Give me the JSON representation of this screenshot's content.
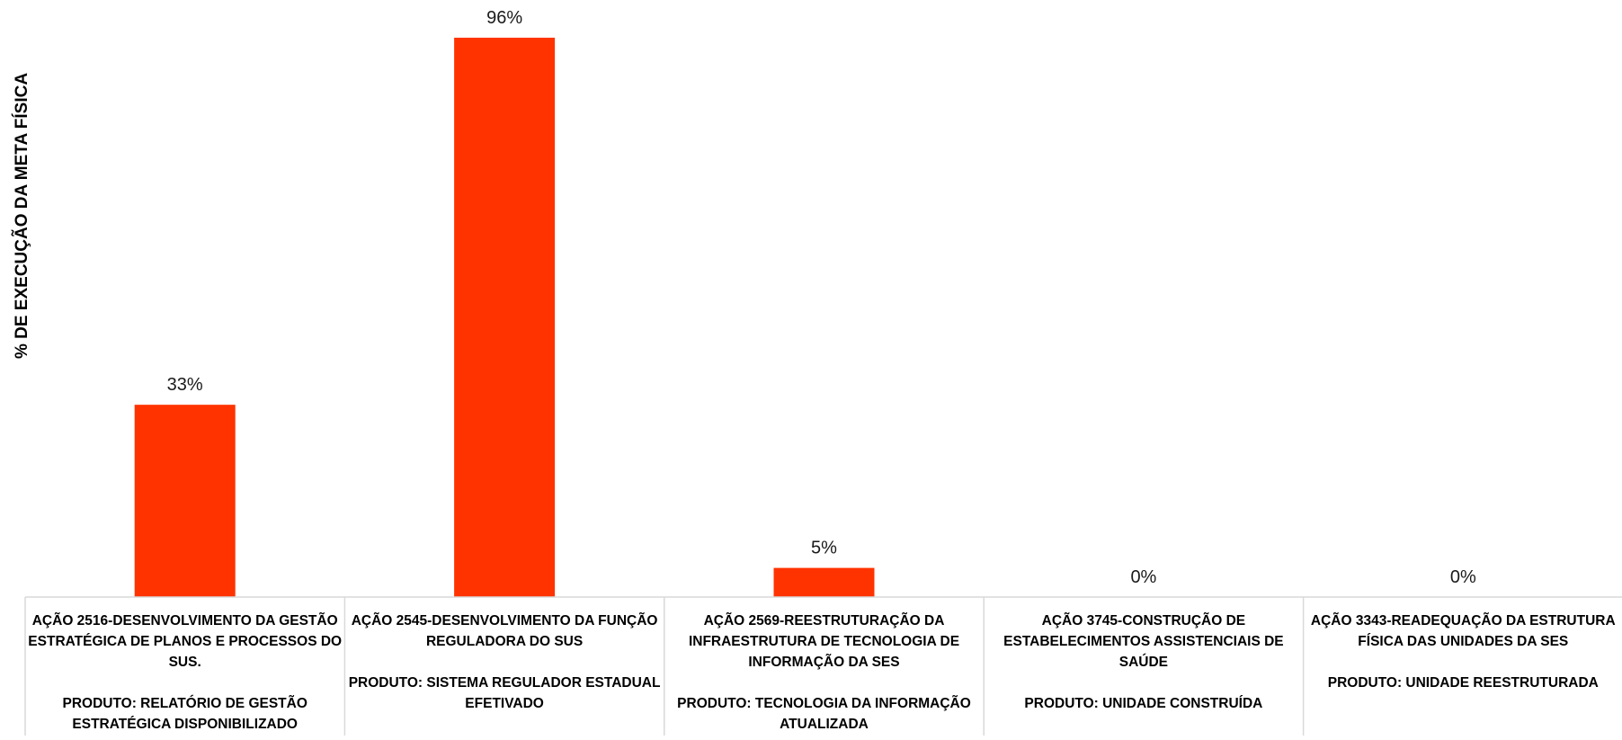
{
  "chart_data": {
    "type": "bar",
    "title": "",
    "xlabel": "",
    "ylabel": "% DE EXECUÇÃO DA META FÍSICA",
    "ylim": [
      0,
      100
    ],
    "grid": false,
    "legend": "none",
    "bar_color": "#FF3300",
    "categories": [
      "AÇÃO 2516-DESENVOLVIMENTO DA GESTÃO ESTRATÉGICA DE PLANOS E PROCESSOS DO SUS.\n\nPRODUTO: RELATÓRIO DE GESTÃO ESTRATÉGICA DISPONIBILIZADO",
      "AÇÃO 2545-DESENVOLVIMENTO DA FUNÇÃO REGULADORA DO SUS\n\nPRODUTO: SISTEMA REGULADOR ESTADUAL EFETIVADO",
      "AÇÃO 2569-REESTRUTURAÇÃO DA INFRAESTRUTURA DE TECNOLOGIA DE INFORMAÇÃO DA SES\n\nPRODUTO: TECNOLOGIA DA INFORMAÇÃO ATUALIZADA",
      "AÇÃO 3745-CONSTRUÇÃO DE ESTABELECIMENTOS ASSISTENCIAIS DE SAÚDE\n\nPRODUTO: UNIDADE CONSTRUÍDA",
      "AÇÃO 3343-READEQUAÇÃO DA ESTRUTURA FÍSICA DAS UNIDADES DA SES\n\nPRODUTO: UNIDADE REESTRUTURADA"
    ],
    "values": [
      33,
      96,
      5,
      0,
      0
    ],
    "data_labels": [
      "33%",
      "96%",
      "5%",
      "0%",
      "0%"
    ]
  }
}
